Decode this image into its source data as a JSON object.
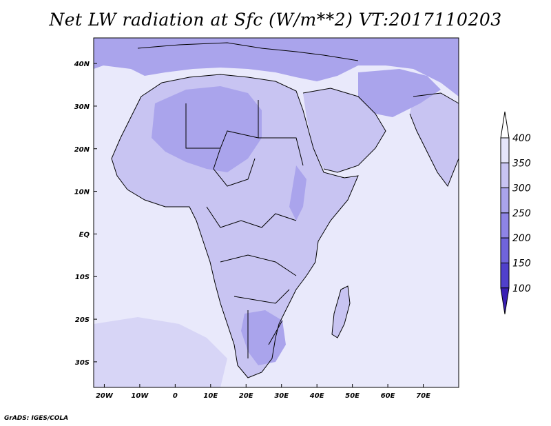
{
  "title": "Net LW radiation at Sfc (W/m**2) VT:2017110203",
  "footer": "GrADS: IGES/COLA",
  "map": {
    "lon_range": [
      -23,
      80
    ],
    "lat_range": [
      -36,
      46
    ],
    "x_ticks": [
      "20W",
      "10W",
      "0",
      "10E",
      "20E",
      "30E",
      "40E",
      "50E",
      "60E",
      "70E"
    ],
    "y_ticks": [
      "40N",
      "30N",
      "20N",
      "10N",
      "EQ",
      "10S",
      "20S",
      "30S"
    ]
  },
  "colorbar": {
    "levels": [
      "400",
      "350",
      "300",
      "250",
      "200",
      "150",
      "100"
    ],
    "colors": [
      "#e6e6fa",
      "#c8c4f2",
      "#aaa4ec",
      "#8e84e6",
      "#7064dc",
      "#5040cc",
      "#3a20b4"
    ]
  },
  "colors": {
    "ocean": "#e9e9fb",
    "land_high": "#c8c4f2",
    "land_mid": "#aaa4ec",
    "land_low": "#8e84e6"
  }
}
